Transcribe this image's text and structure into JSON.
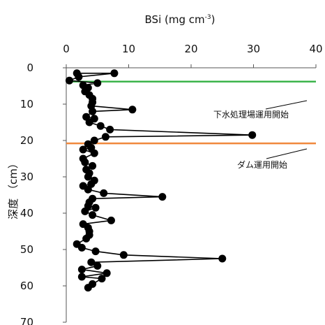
{
  "chart_data": {
    "type": "scatter",
    "mode": "line+markers",
    "title": "BSi (mg cm",
    "title_sup": "-3",
    "title_close": ")",
    "xlabel": "",
    "ylabel": "深度 （cm）",
    "x_axis_position": "top",
    "y_axis_inverted": true,
    "xlim": [
      0,
      40
    ],
    "ylim": [
      0,
      70
    ],
    "x_ticks": [
      "0",
      "10",
      "20",
      "30",
      "40"
    ],
    "y_ticks": [
      "0",
      "10",
      "20",
      "30",
      "40",
      "50",
      "60",
      "70"
    ],
    "grid": false,
    "series_color": "#000000",
    "series": [
      {
        "points": [
          [
            1.7,
            1.5
          ],
          [
            7.7,
            1.5
          ],
          [
            2.0,
            2.5
          ],
          [
            0.5,
            3.5
          ],
          [
            5.0,
            4.2
          ],
          [
            2.7,
            4.8
          ],
          [
            3.5,
            5.5
          ],
          [
            3.0,
            6.5
          ],
          [
            3.7,
            7.5
          ],
          [
            4.2,
            8.5
          ],
          [
            4.2,
            9.5
          ],
          [
            4.0,
            10.5
          ],
          [
            10.6,
            11.5
          ],
          [
            4.2,
            12.0
          ],
          [
            3.2,
            13.5
          ],
          [
            4.5,
            14.0
          ],
          [
            3.7,
            15.0
          ],
          [
            5.5,
            16.0
          ],
          [
            7.0,
            17.0
          ],
          [
            29.8,
            18.5
          ],
          [
            6.3,
            19.0
          ],
          [
            4.5,
            20.0
          ],
          [
            3.5,
            21.0
          ],
          [
            4.0,
            22.0
          ],
          [
            2.7,
            22.5
          ],
          [
            4.5,
            23.5
          ],
          [
            2.7,
            25.0
          ],
          [
            3.0,
            26.0
          ],
          [
            4.2,
            27.0
          ],
          [
            3.2,
            28.0
          ],
          [
            3.7,
            29.0
          ],
          [
            3.5,
            30.0
          ],
          [
            4.5,
            31.0
          ],
          [
            4.0,
            32.0
          ],
          [
            2.7,
            32.5
          ],
          [
            3.5,
            33.5
          ],
          [
            6.0,
            34.5
          ],
          [
            15.4,
            35.5
          ],
          [
            4.2,
            36.0
          ],
          [
            3.7,
            37.0
          ],
          [
            3.5,
            38.0
          ],
          [
            4.7,
            38.5
          ],
          [
            3.0,
            39.5
          ],
          [
            4.2,
            40.5
          ],
          [
            7.2,
            42.0
          ],
          [
            2.7,
            43.0
          ],
          [
            3.5,
            44.0
          ],
          [
            3.7,
            45.0
          ],
          [
            3.7,
            46.0
          ],
          [
            3.2,
            47.0
          ],
          [
            1.7,
            48.5
          ],
          [
            2.5,
            49.5
          ],
          [
            4.7,
            50.5
          ],
          [
            9.2,
            51.5
          ],
          [
            25.0,
            52.5
          ],
          [
            4.0,
            53.5
          ],
          [
            5.0,
            54.5
          ],
          [
            2.5,
            55.5
          ],
          [
            6.5,
            56.5
          ],
          [
            2.5,
            57.5
          ],
          [
            5.7,
            58.0
          ],
          [
            4.2,
            59.5
          ],
          [
            3.5,
            60.5
          ]
        ]
      }
    ],
    "reference_lines": [
      {
        "y": 3.8,
        "color": "#3cb44b",
        "label": "下水処理場運用開始"
      },
      {
        "y": 20.8,
        "color": "#f0883c",
        "label": "ダム運用開始"
      }
    ]
  }
}
